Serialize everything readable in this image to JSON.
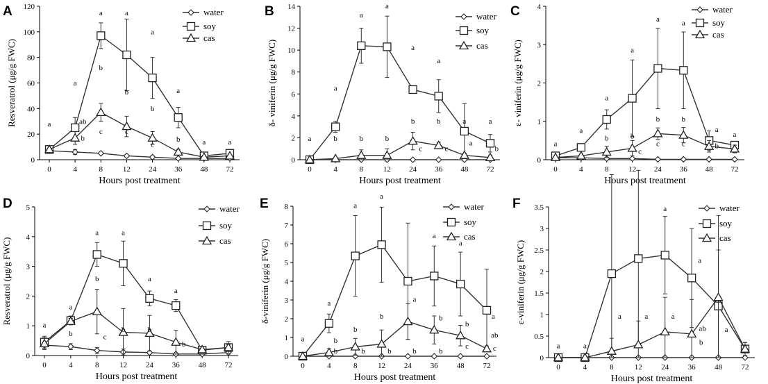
{
  "chart_data": [
    {
      "type": "line",
      "panel": "A",
      "categories": [
        "0",
        "4",
        "8",
        "12",
        "24",
        "36",
        "48",
        "72"
      ],
      "xlabel": "Hours post treatment",
      "ylabel": "Resveratrol (μg/g FWC)",
      "ylim": [
        0,
        120
      ],
      "yticks": [
        0,
        20,
        40,
        60,
        80,
        100,
        120
      ],
      "legend": [
        "water",
        "soy",
        "cas"
      ],
      "series": [
        {
          "name": "water",
          "marker": "diamond",
          "values": [
            7,
            6,
            5,
            3,
            2,
            1,
            1,
            1
          ],
          "errors": [
            2,
            2,
            1,
            1,
            1,
            0.5,
            0.5,
            0.5
          ]
        },
        {
          "name": "soy",
          "marker": "square",
          "values": [
            8,
            25,
            97,
            82,
            64,
            33,
            3,
            5
          ],
          "errors": [
            3,
            8,
            10,
            28,
            16,
            8,
            2,
            3
          ]
        },
        {
          "name": "cas",
          "marker": "triangle",
          "values": [
            8,
            17,
            37,
            26,
            17,
            6,
            2,
            3
          ],
          "errors": [
            3,
            5,
            7,
            8,
            5,
            2,
            1,
            1
          ]
        }
      ],
      "annotations": [
        {
          "text": "a",
          "cat": 0,
          "y": 26
        },
        {
          "text": "a",
          "cat": 1,
          "y": 58
        },
        {
          "text": "ab",
          "cat": 1.3,
          "y": 28
        },
        {
          "text": "b",
          "cat": 1.3,
          "y": 15
        },
        {
          "text": "a",
          "cat": 2,
          "y": 113
        },
        {
          "text": "b",
          "cat": 2,
          "y": 70
        },
        {
          "text": "c",
          "cat": 2,
          "y": 20
        },
        {
          "text": "a",
          "cat": 3,
          "y": 113
        },
        {
          "text": "b",
          "cat": 3,
          "y": 51
        },
        {
          "text": "c",
          "cat": 3,
          "y": 20
        },
        {
          "text": "a",
          "cat": 4,
          "y": 98
        },
        {
          "text": "b",
          "cat": 4,
          "y": 38
        },
        {
          "text": "c",
          "cat": 4,
          "y": 10
        },
        {
          "text": "a",
          "cat": 5,
          "y": 52
        },
        {
          "text": "b",
          "cat": 5,
          "y": 14
        },
        {
          "text": "a",
          "cat": 6,
          "y": 12
        },
        {
          "text": "a",
          "cat": 7,
          "y": 12
        }
      ]
    },
    {
      "type": "line",
      "panel": "B",
      "categories": [
        "0",
        "4",
        "8",
        "12",
        "24",
        "36",
        "48",
        "72"
      ],
      "xlabel": "Hours post treatment",
      "ylabel": "δ- viniferin (μg/g FWC)",
      "ylim": [
        0,
        14
      ],
      "yticks": [
        0,
        2,
        4,
        6,
        8,
        10,
        12,
        14
      ],
      "legend": [
        "water",
        "soy",
        "cas"
      ],
      "series": [
        {
          "name": "water",
          "marker": "diamond",
          "values": [
            0,
            0,
            0,
            0,
            0,
            0,
            0,
            0
          ],
          "errors": [
            0,
            0,
            0,
            0,
            0,
            0,
            0,
            0
          ]
        },
        {
          "name": "soy",
          "marker": "square",
          "values": [
            0,
            3,
            10.4,
            10.3,
            6.4,
            5.8,
            2.6,
            1.5
          ],
          "errors": [
            0,
            0.5,
            1.6,
            2.8,
            0.3,
            1.5,
            2.5,
            0.8
          ]
        },
        {
          "name": "cas",
          "marker": "triangle",
          "values": [
            0,
            0.1,
            0.4,
            0.4,
            1.7,
            1.3,
            0.4,
            0.2
          ],
          "errors": [
            0,
            0.1,
            0.5,
            0.6,
            0.8,
            0.3,
            0.2,
            0.2
          ]
        }
      ],
      "annotations": [
        {
          "text": "a",
          "cat": 0,
          "y": 1.7
        },
        {
          "text": "a",
          "cat": 1,
          "y": 6.3
        },
        {
          "text": "b",
          "cat": 1,
          "y": 1.7
        },
        {
          "text": "a",
          "cat": 2,
          "y": 13
        },
        {
          "text": "b",
          "cat": 2,
          "y": 1.7
        },
        {
          "text": "a",
          "cat": 3,
          "y": 13.8
        },
        {
          "text": "b",
          "cat": 3,
          "y": 1.7
        },
        {
          "text": "a",
          "cat": 4,
          "y": 10
        },
        {
          "text": "b",
          "cat": 4,
          "y": 3.3
        },
        {
          "text": "c",
          "cat": 4.3,
          "y": 0.8
        },
        {
          "text": "a",
          "cat": 5,
          "y": 8.8
        },
        {
          "text": "b",
          "cat": 5,
          "y": 3.3
        },
        {
          "text": "c",
          "cat": 5.3,
          "y": 0.8
        },
        {
          "text": "a",
          "cat": 6,
          "y": 3.3
        },
        {
          "text": "a",
          "cat": 6.25,
          "y": 1.3
        },
        {
          "text": "a",
          "cat": 7,
          "y": 3.3
        },
        {
          "text": "b",
          "cat": 7.25,
          "y": 0.8
        }
      ]
    },
    {
      "type": "line",
      "panel": "C",
      "categories": [
        "0",
        "4",
        "8",
        "12",
        "24",
        "36",
        "48",
        "72"
      ],
      "xlabel": "Hours post treatment",
      "ylabel": "ε- viniferin (μg/g FWC)",
      "ylim": [
        0,
        4
      ],
      "yticks": [
        0,
        1,
        2,
        3,
        4
      ],
      "legend": [
        "water",
        "soy",
        "cas"
      ],
      "series": [
        {
          "name": "water",
          "marker": "diamond",
          "values": [
            0.05,
            0.05,
            0.03,
            0.03,
            0.01,
            0.01,
            0.01,
            0.01
          ],
          "errors": [
            0,
            0,
            0,
            0,
            0,
            0,
            0,
            0
          ]
        },
        {
          "name": "soy",
          "marker": "square",
          "values": [
            0.1,
            0.32,
            1.05,
            1.6,
            2.38,
            2.33,
            0.5,
            0.38
          ],
          "errors": [
            0.05,
            0.05,
            0.25,
            1.0,
            1.05,
            1.0,
            0.25,
            0.1
          ]
        },
        {
          "name": "cas",
          "marker": "triangle",
          "values": [
            0.06,
            0.1,
            0.2,
            0.3,
            0.68,
            0.64,
            0.35,
            0.28
          ],
          "errors": [
            0.03,
            0.05,
            0.15,
            0.2,
            0.15,
            0.2,
            0.15,
            0.1
          ]
        }
      ],
      "annotations": [
        {
          "text": "a",
          "cat": 0,
          "y": 0.35
        },
        {
          "text": "a",
          "cat": 1,
          "y": 0.7
        },
        {
          "text": "a",
          "cat": 2,
          "y": 1.55
        },
        {
          "text": "b",
          "cat": 2,
          "y": 0.5
        },
        {
          "text": "a",
          "cat": 3,
          "y": 2.8
        },
        {
          "text": "b",
          "cat": 3,
          "y": 0.55
        },
        {
          "text": "c",
          "cat": 3.3,
          "y": 0.15
        },
        {
          "text": "a",
          "cat": 4,
          "y": 3.6
        },
        {
          "text": "b",
          "cat": 4,
          "y": 1.0
        },
        {
          "text": "c",
          "cat": 4,
          "y": 0.35
        },
        {
          "text": "a",
          "cat": 5,
          "y": 3.5
        },
        {
          "text": "b",
          "cat": 5,
          "y": 1.0
        },
        {
          "text": "c",
          "cat": 5,
          "y": 0.35
        },
        {
          "text": "a",
          "cat": 6.3,
          "y": 0.72
        },
        {
          "text": "b",
          "cat": 6.3,
          "y": 0.3
        },
        {
          "text": "a",
          "cat": 7,
          "y": 0.6
        }
      ]
    },
    {
      "type": "line",
      "panel": "D",
      "categories": [
        "0",
        "4",
        "8",
        "12",
        "24",
        "36",
        "48",
        "72"
      ],
      "xlabel": "Hours post treatment",
      "ylabel": "Resveratrol (μg/g FWC)",
      "ylim": [
        0,
        5
      ],
      "yticks": [
        0,
        1,
        2,
        3,
        4,
        5
      ],
      "legend": [
        "water",
        "soy",
        "cas"
      ],
      "series": [
        {
          "name": "water",
          "marker": "diamond",
          "values": [
            0.35,
            0.3,
            0.17,
            0.12,
            0.1,
            0.05,
            0.05,
            0.1
          ],
          "errors": [
            0.1,
            0.1,
            0.1,
            0.1,
            0.05,
            0.03,
            0.03,
            0.05
          ]
        },
        {
          "name": "soy",
          "marker": "square",
          "values": [
            0.45,
            1.18,
            3.4,
            3.1,
            1.92,
            1.68,
            0.18,
            0.27
          ],
          "errors": [
            0.2,
            0.15,
            0.4,
            0.75,
            0.25,
            0.2,
            0.05,
            0.2
          ]
        },
        {
          "name": "cas",
          "marker": "triangle",
          "values": [
            0.4,
            1.15,
            1.48,
            0.78,
            0.75,
            0.45,
            0.2,
            0.27
          ],
          "errors": [
            0.2,
            0.1,
            0.75,
            0.8,
            0.6,
            0.4,
            0.05,
            0.1
          ]
        }
      ],
      "annotations": [
        {
          "text": "a",
          "cat": 0,
          "y": 0.95
        },
        {
          "text": "b",
          "cat": 1,
          "y": 0.65
        },
        {
          "text": "a",
          "cat": 1,
          "y": 1.55
        },
        {
          "text": "a",
          "cat": 2,
          "y": 4.05
        },
        {
          "text": "b",
          "cat": 2,
          "y": 2.5
        },
        {
          "text": "c",
          "cat": 2.3,
          "y": 0.55
        },
        {
          "text": "a",
          "cat": 3,
          "y": 4.05
        },
        {
          "text": "b",
          "cat": 3,
          "y": 0.8
        },
        {
          "text": "a",
          "cat": 4,
          "y": 2.5
        },
        {
          "text": "b",
          "cat": 4,
          "y": 0.8
        },
        {
          "text": "a",
          "cat": 5,
          "y": 2.1
        },
        {
          "text": "b",
          "cat": 5.3,
          "y": 0.3
        }
      ]
    },
    {
      "type": "line",
      "panel": "E",
      "categories": [
        "0",
        "4",
        "8",
        "12",
        "24",
        "36",
        "48",
        "72"
      ],
      "xlabel": "Hours post treatment",
      "ylabel": "δ-viniferin (μg/g FWC)",
      "ylim": [
        0,
        8
      ],
      "yticks": [
        0,
        1,
        2,
        3,
        4,
        5,
        6,
        7,
        8
      ],
      "legend": [
        "water",
        "soy",
        "cas"
      ],
      "series": [
        {
          "name": "water",
          "marker": "diamond",
          "values": [
            0,
            0,
            0,
            0,
            0,
            0,
            0,
            0
          ],
          "errors": [
            0,
            0,
            0,
            0,
            0,
            0,
            0,
            0
          ]
        },
        {
          "name": "soy",
          "marker": "square",
          "values": [
            0,
            1.75,
            5.35,
            5.95,
            4.0,
            4.28,
            3.85,
            2.45
          ],
          "errors": [
            0,
            0.5,
            2.15,
            2.0,
            3.1,
            1.6,
            1.7,
            2.2
          ]
        },
        {
          "name": "cas",
          "marker": "triangle",
          "values": [
            0,
            0.2,
            0.5,
            0.65,
            1.85,
            1.4,
            1.1,
            0.4
          ],
          "errors": [
            0,
            0.2,
            0.45,
            0.75,
            0.95,
            0.75,
            0.55,
            0.15
          ]
        }
      ],
      "annotations": [
        {
          "text": "a",
          "cat": 0,
          "y": 0.8
        },
        {
          "text": "a",
          "cat": 1,
          "y": 2.7
        },
        {
          "text": "b",
          "cat": 1.25,
          "y": 0.7
        },
        {
          "text": "b",
          "cat": 1.25,
          "y": 0.15
        },
        {
          "text": "a",
          "cat": 2,
          "y": 7.9
        },
        {
          "text": "b",
          "cat": 2,
          "y": 1.3
        },
        {
          "text": "b",
          "cat": 2.3,
          "y": 0.15
        },
        {
          "text": "a",
          "cat": 3,
          "y": 8.4
        },
        {
          "text": "b",
          "cat": 3,
          "y": 2.0
        },
        {
          "text": "b",
          "cat": 3.3,
          "y": 0.15
        },
        {
          "text": "a",
          "cat": 4.25,
          "y": 2.9
        },
        {
          "text": "b",
          "cat": 4.25,
          "y": 0.15
        },
        {
          "text": "a",
          "cat": 5,
          "y": 6.3
        },
        {
          "text": "b",
          "cat": 5.25,
          "y": 1.9
        },
        {
          "text": "b",
          "cat": 5.25,
          "y": 0.15
        },
        {
          "text": "a",
          "cat": 6,
          "y": 5.9
        },
        {
          "text": "b",
          "cat": 6.25,
          "y": 1.6
        },
        {
          "text": "c",
          "cat": 6.25,
          "y": 0.4
        },
        {
          "text": "a",
          "cat": 7.25,
          "y": 2.0
        },
        {
          "text": "ab",
          "cat": 7.3,
          "y": 1.0
        },
        {
          "text": "c",
          "cat": 7.3,
          "y": 0.3
        }
      ]
    },
    {
      "type": "line",
      "panel": "F",
      "categories": [
        "0",
        "4",
        "8",
        "12",
        "24",
        "36",
        "48",
        "72"
      ],
      "xlabel": "Hours post treatment",
      "ylabel": "ε-viniferin (μg/g FWC)",
      "ylim": [
        0,
        3.5
      ],
      "yticks": [
        0,
        0.5,
        1,
        1.5,
        2,
        2.5,
        3,
        3.5
      ],
      "legend": [
        "water",
        "soy",
        "cas"
      ],
      "series": [
        {
          "name": "water",
          "marker": "diamond",
          "values": [
            0,
            0,
            0,
            0,
            0,
            0,
            0,
            0
          ],
          "errors": [
            0,
            0,
            0,
            0,
            0,
            0,
            0,
            0
          ]
        },
        {
          "name": "soy",
          "marker": "square",
          "values": [
            0,
            0,
            1.95,
            2.3,
            2.38,
            1.85,
            1.2,
            0.2
          ],
          "errors": [
            0,
            0,
            2.3,
            2.05,
            0.9,
            1.15,
            1.3,
            0.15
          ]
        },
        {
          "name": "cas",
          "marker": "triangle",
          "values": [
            0,
            0,
            0.15,
            0.3,
            0.6,
            0.55,
            1.4,
            0.2
          ],
          "errors": [
            0,
            0,
            0.3,
            0.55,
            0.8,
            0.8,
            1.9,
            0.15
          ]
        }
      ],
      "annotations": [
        {
          "text": "a",
          "cat": 0,
          "y": 0.22
        },
        {
          "text": "a",
          "cat": 1,
          "y": 0.22
        },
        {
          "text": "a",
          "cat": 2.3,
          "y": 0.9
        },
        {
          "text": "a",
          "cat": 3.3,
          "y": 0.9
        },
        {
          "text": "a",
          "cat": 4,
          "y": 3.4
        },
        {
          "text": "a",
          "cat": 4.3,
          "y": 0.9
        },
        {
          "text": "a",
          "cat": 5.3,
          "y": 2.2
        },
        {
          "text": "ab",
          "cat": 5.4,
          "y": 0.62
        },
        {
          "text": "b",
          "cat": 5.35,
          "y": 0.3
        },
        {
          "text": "a",
          "cat": 6.3,
          "y": 0.6
        }
      ]
    }
  ]
}
